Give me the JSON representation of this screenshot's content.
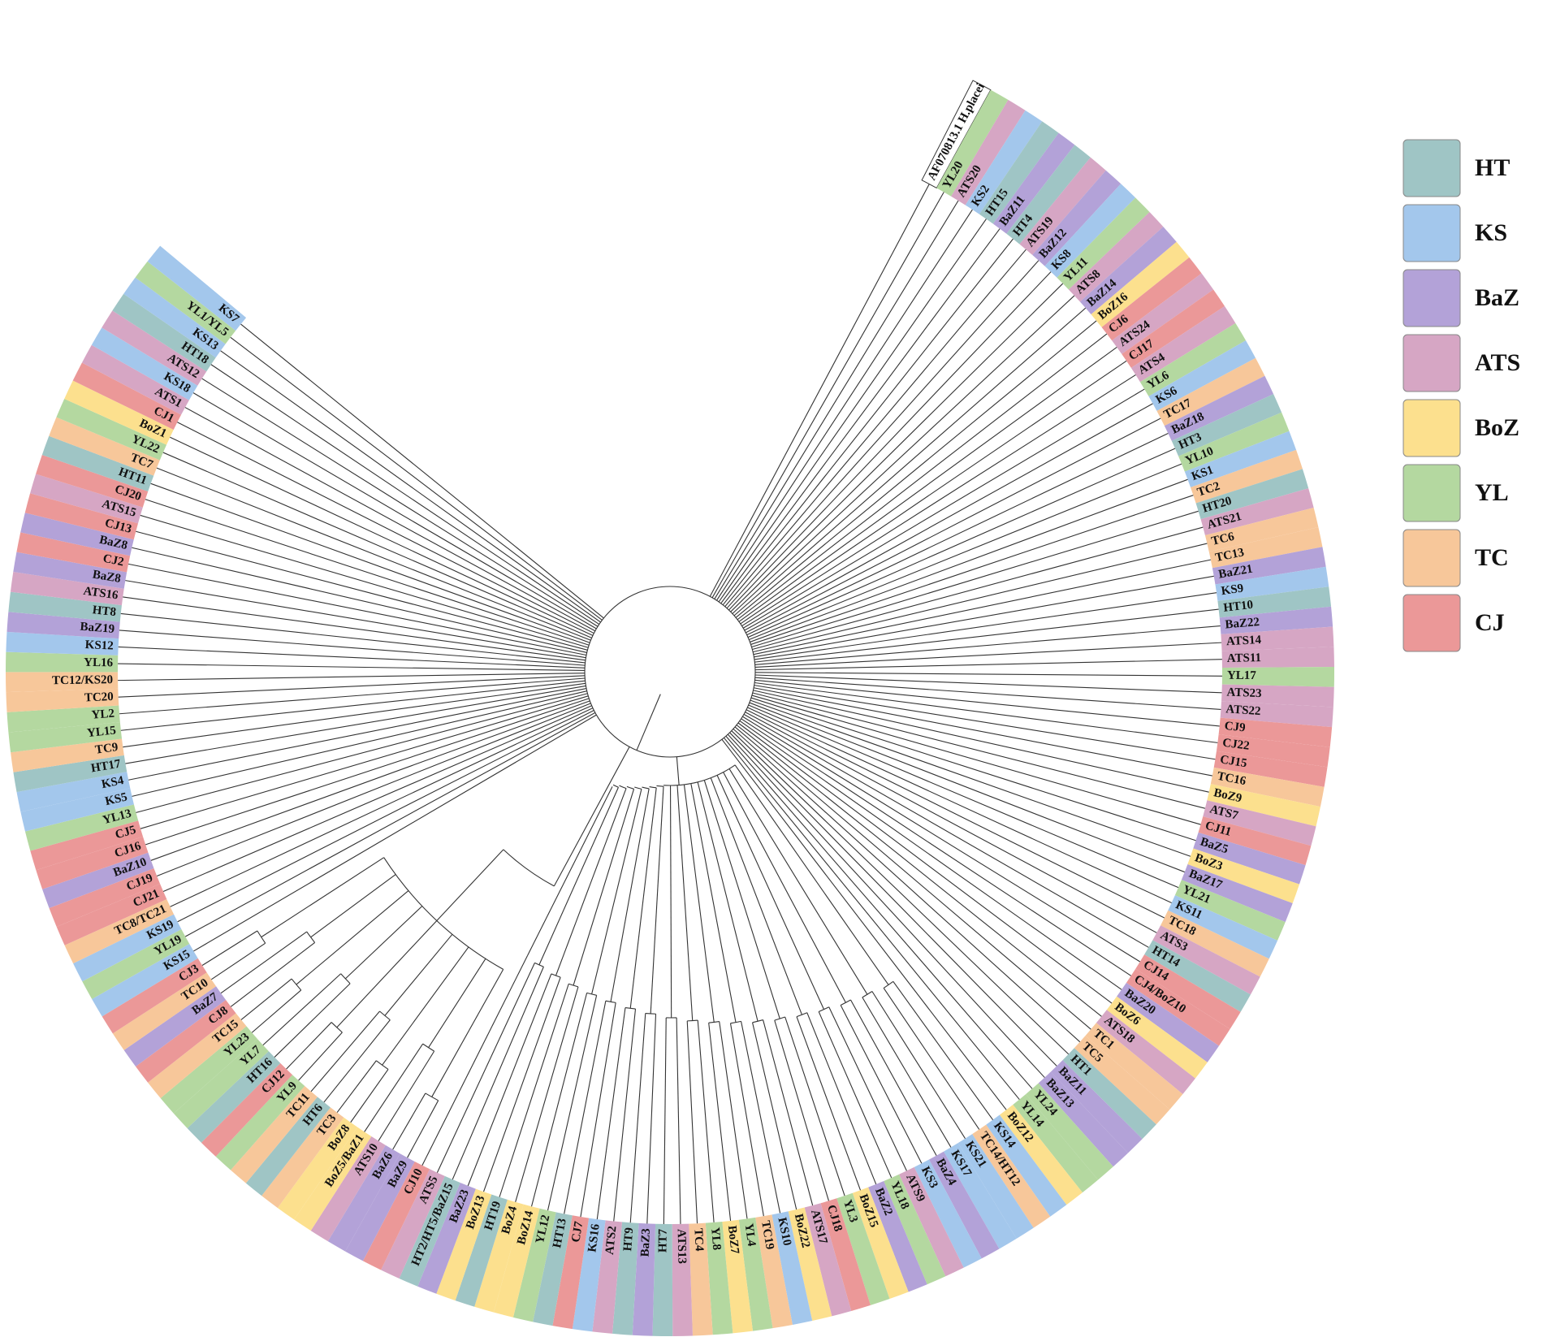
{
  "groups": [
    {
      "code": "HT",
      "color": "#9fc5c5"
    },
    {
      "code": "KS",
      "color": "#a3c7ec"
    },
    {
      "code": "BaZ",
      "color": "#b3a2d8"
    },
    {
      "code": "ATS",
      "color": "#d6a6c4"
    },
    {
      "code": "BoZ",
      "color": "#fce08e"
    },
    {
      "code": "YL",
      "color": "#b4d8a0"
    },
    {
      "code": "TC",
      "color": "#f7c79a"
    },
    {
      "code": "CJ",
      "color": "#eb9898"
    }
  ],
  "legend": {
    "items": [
      "HT",
      "KS",
      "BaZ",
      "ATS",
      "BoZ",
      "YL",
      "TC",
      "CJ"
    ]
  },
  "outgroup_color": "#ffffff",
  "leaves": [
    "AF070813.1 H.placei",
    "YL20",
    "ATS20",
    "KS2",
    "HT15",
    "BaZ11",
    "HT4",
    "ATS19",
    "BaZ12",
    "KS8",
    "YL11",
    "ATS8",
    "BaZ14",
    "BoZ16",
    "CJ6",
    "ATS24",
    "CJ17",
    "ATS4",
    "YL6",
    "KS6",
    "TC17",
    "BaZ18",
    "HT3",
    "YL10",
    "KS1",
    "TC2",
    "HT20",
    "ATS21",
    "TC6",
    "TC13",
    "BaZ21",
    "KS9",
    "HT10",
    "BaZ22",
    "ATS14",
    "ATS11",
    "YL17",
    "ATS23",
    "ATS22",
    "CJ9",
    "CJ22",
    "CJ15",
    "TC16",
    "BoZ9",
    "ATS7",
    "CJ11",
    "BaZ5",
    "BoZ3",
    "BaZ17",
    "YL21",
    "KS11",
    "TC18",
    "ATS3",
    "HT14",
    "CJ14",
    "CJ4/BoZ10",
    "BaZ20",
    "BoZ6",
    "ATS18",
    "TC1",
    "TC5",
    "HT1",
    "BaZ11",
    "BaZ13",
    "YL24",
    "YL14",
    "BoZ12",
    "KS14",
    "TC14/HT12",
    "KS21",
    "KS17",
    "BaZ4",
    "KS3",
    "ATS9",
    "YL18",
    "BaZ2",
    "BoZ15",
    "YL3",
    "CJ18",
    "ATS17",
    "BoZ22",
    "KS10",
    "TC19",
    "YL4",
    "BoZ7",
    "YL8",
    "TC4",
    "ATS13",
    "HT7",
    "BaZ3",
    "HT9",
    "ATS2",
    "KS16",
    "CJ7",
    "HT13",
    "YL12",
    "BoZ14",
    "BoZ4",
    "HT19",
    "BoZ13",
    "BaZ23",
    "HT2/HT5/BaZ15",
    "ATS5",
    "CJ10",
    "BaZ9",
    "BaZ6",
    "ATS10",
    "BoZ5/BaZ1",
    "BoZ8",
    "TC3",
    "HT6",
    "TC11",
    "YL9",
    "CJ12",
    "HT16",
    "YL7",
    "YL23",
    "TC15",
    "CJ8",
    "BaZ7",
    "TC10",
    "CJ3",
    "KS15",
    "YL19",
    "KS19",
    "TC8/TC21",
    "CJ21",
    "CJ19",
    "BaZ10",
    "CJ16",
    "CJ5",
    "YL13",
    "KS5",
    "KS4",
    "HT17",
    "TC9",
    "YL15",
    "YL2",
    "TC20",
    "TC12/KS20",
    "YL16",
    "KS12",
    "BaZ19",
    "HT8",
    "ATS16",
    "BaZ8",
    "CJ2",
    "BaZ8",
    "CJ13",
    "ATS15",
    "CJ20",
    "HT11",
    "TC7",
    "YL22",
    "BoZ1",
    "CJ1",
    "ATS1",
    "KS18",
    "ATS12",
    "HT18",
    "KS13",
    "YL1/YL5",
    "KS7"
  ]
}
